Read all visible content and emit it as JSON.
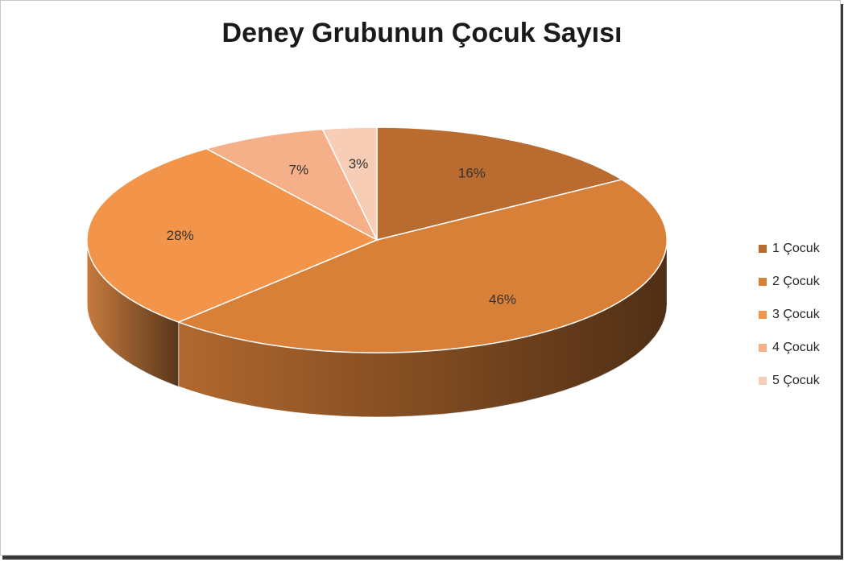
{
  "chart_data": {
    "type": "pie",
    "title": "Deney Grubunun Çocuk Sayısı",
    "style": "3d",
    "categories": [
      "1 Çocuk",
      "2 Çocuk",
      "3 Çocuk",
      "4 Çocuk",
      "5 Çocuk"
    ],
    "values": [
      16,
      46,
      28,
      7,
      3
    ],
    "data_labels": [
      "16%",
      "46%",
      "28%",
      "7%",
      "3%"
    ],
    "colors": [
      "#b96b30",
      "#d87f38",
      "#f2954a",
      "#f5b08a",
      "#f8cdb5"
    ],
    "legend_position": "right"
  }
}
